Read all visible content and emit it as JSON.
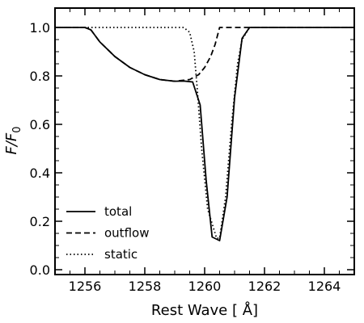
{
  "chart_data": {
    "type": "line",
    "title": "",
    "xlabel": "Rest Wave [ Å]",
    "ylabel_main": "F/F",
    "ylabel_sub": "0",
    "xlim": [
      1255.0,
      1265.0
    ],
    "ylim": [
      -0.02,
      1.08
    ],
    "xticks": [
      1256,
      1258,
      1260,
      1262,
      1264
    ],
    "xtick_labels": [
      "1256",
      "1258",
      "1260",
      "1262",
      "1264"
    ],
    "yticks": [
      0.0,
      0.2,
      0.4,
      0.6,
      0.8,
      1.0
    ],
    "ytick_labels": [
      "0.0",
      "0.2",
      "0.4",
      "0.6",
      "0.8",
      "1.0"
    ],
    "legend_position": "lower-left",
    "series": [
      {
        "name": "total",
        "style": "solid",
        "x": [
          1255.0,
          1256.0,
          1256.2,
          1256.5,
          1257.0,
          1257.5,
          1258.0,
          1258.5,
          1259.0,
          1259.3,
          1259.6,
          1259.85,
          1260.05,
          1260.25,
          1260.5,
          1260.75,
          1261.0,
          1261.25,
          1261.5,
          1262.0,
          1263.0,
          1264.0,
          1265.0
        ],
        "y": [
          1.0,
          1.0,
          0.99,
          0.94,
          0.88,
          0.835,
          0.805,
          0.785,
          0.778,
          0.779,
          0.775,
          0.68,
          0.37,
          0.135,
          0.12,
          0.3,
          0.71,
          0.955,
          1.0,
          1.0,
          1.0,
          1.0,
          1.0
        ]
      },
      {
        "name": "outflow",
        "style": "dashed",
        "x": [
          1255.0,
          1256.0,
          1256.2,
          1256.5,
          1257.0,
          1257.5,
          1258.0,
          1258.5,
          1259.0,
          1259.5,
          1259.8,
          1260.0,
          1260.2,
          1260.35,
          1260.5,
          1261.0,
          1262.0,
          1265.0
        ],
        "y": [
          1.0,
          1.0,
          0.99,
          0.94,
          0.88,
          0.835,
          0.805,
          0.785,
          0.778,
          0.785,
          0.805,
          0.835,
          0.88,
          0.93,
          1.0,
          1.0,
          1.0,
          1.0
        ]
      },
      {
        "name": "static",
        "style": "dotted",
        "x": [
          1255.0,
          1259.3,
          1259.5,
          1259.65,
          1259.75,
          1259.9,
          1260.1,
          1260.4,
          1260.5,
          1260.7,
          1260.9,
          1261.1,
          1261.25,
          1261.5,
          1265.0
        ],
        "y": [
          1.0,
          1.0,
          0.98,
          0.9,
          0.75,
          0.5,
          0.25,
          0.13,
          0.13,
          0.3,
          0.6,
          0.85,
          0.95,
          1.0,
          1.0
        ]
      }
    ]
  }
}
